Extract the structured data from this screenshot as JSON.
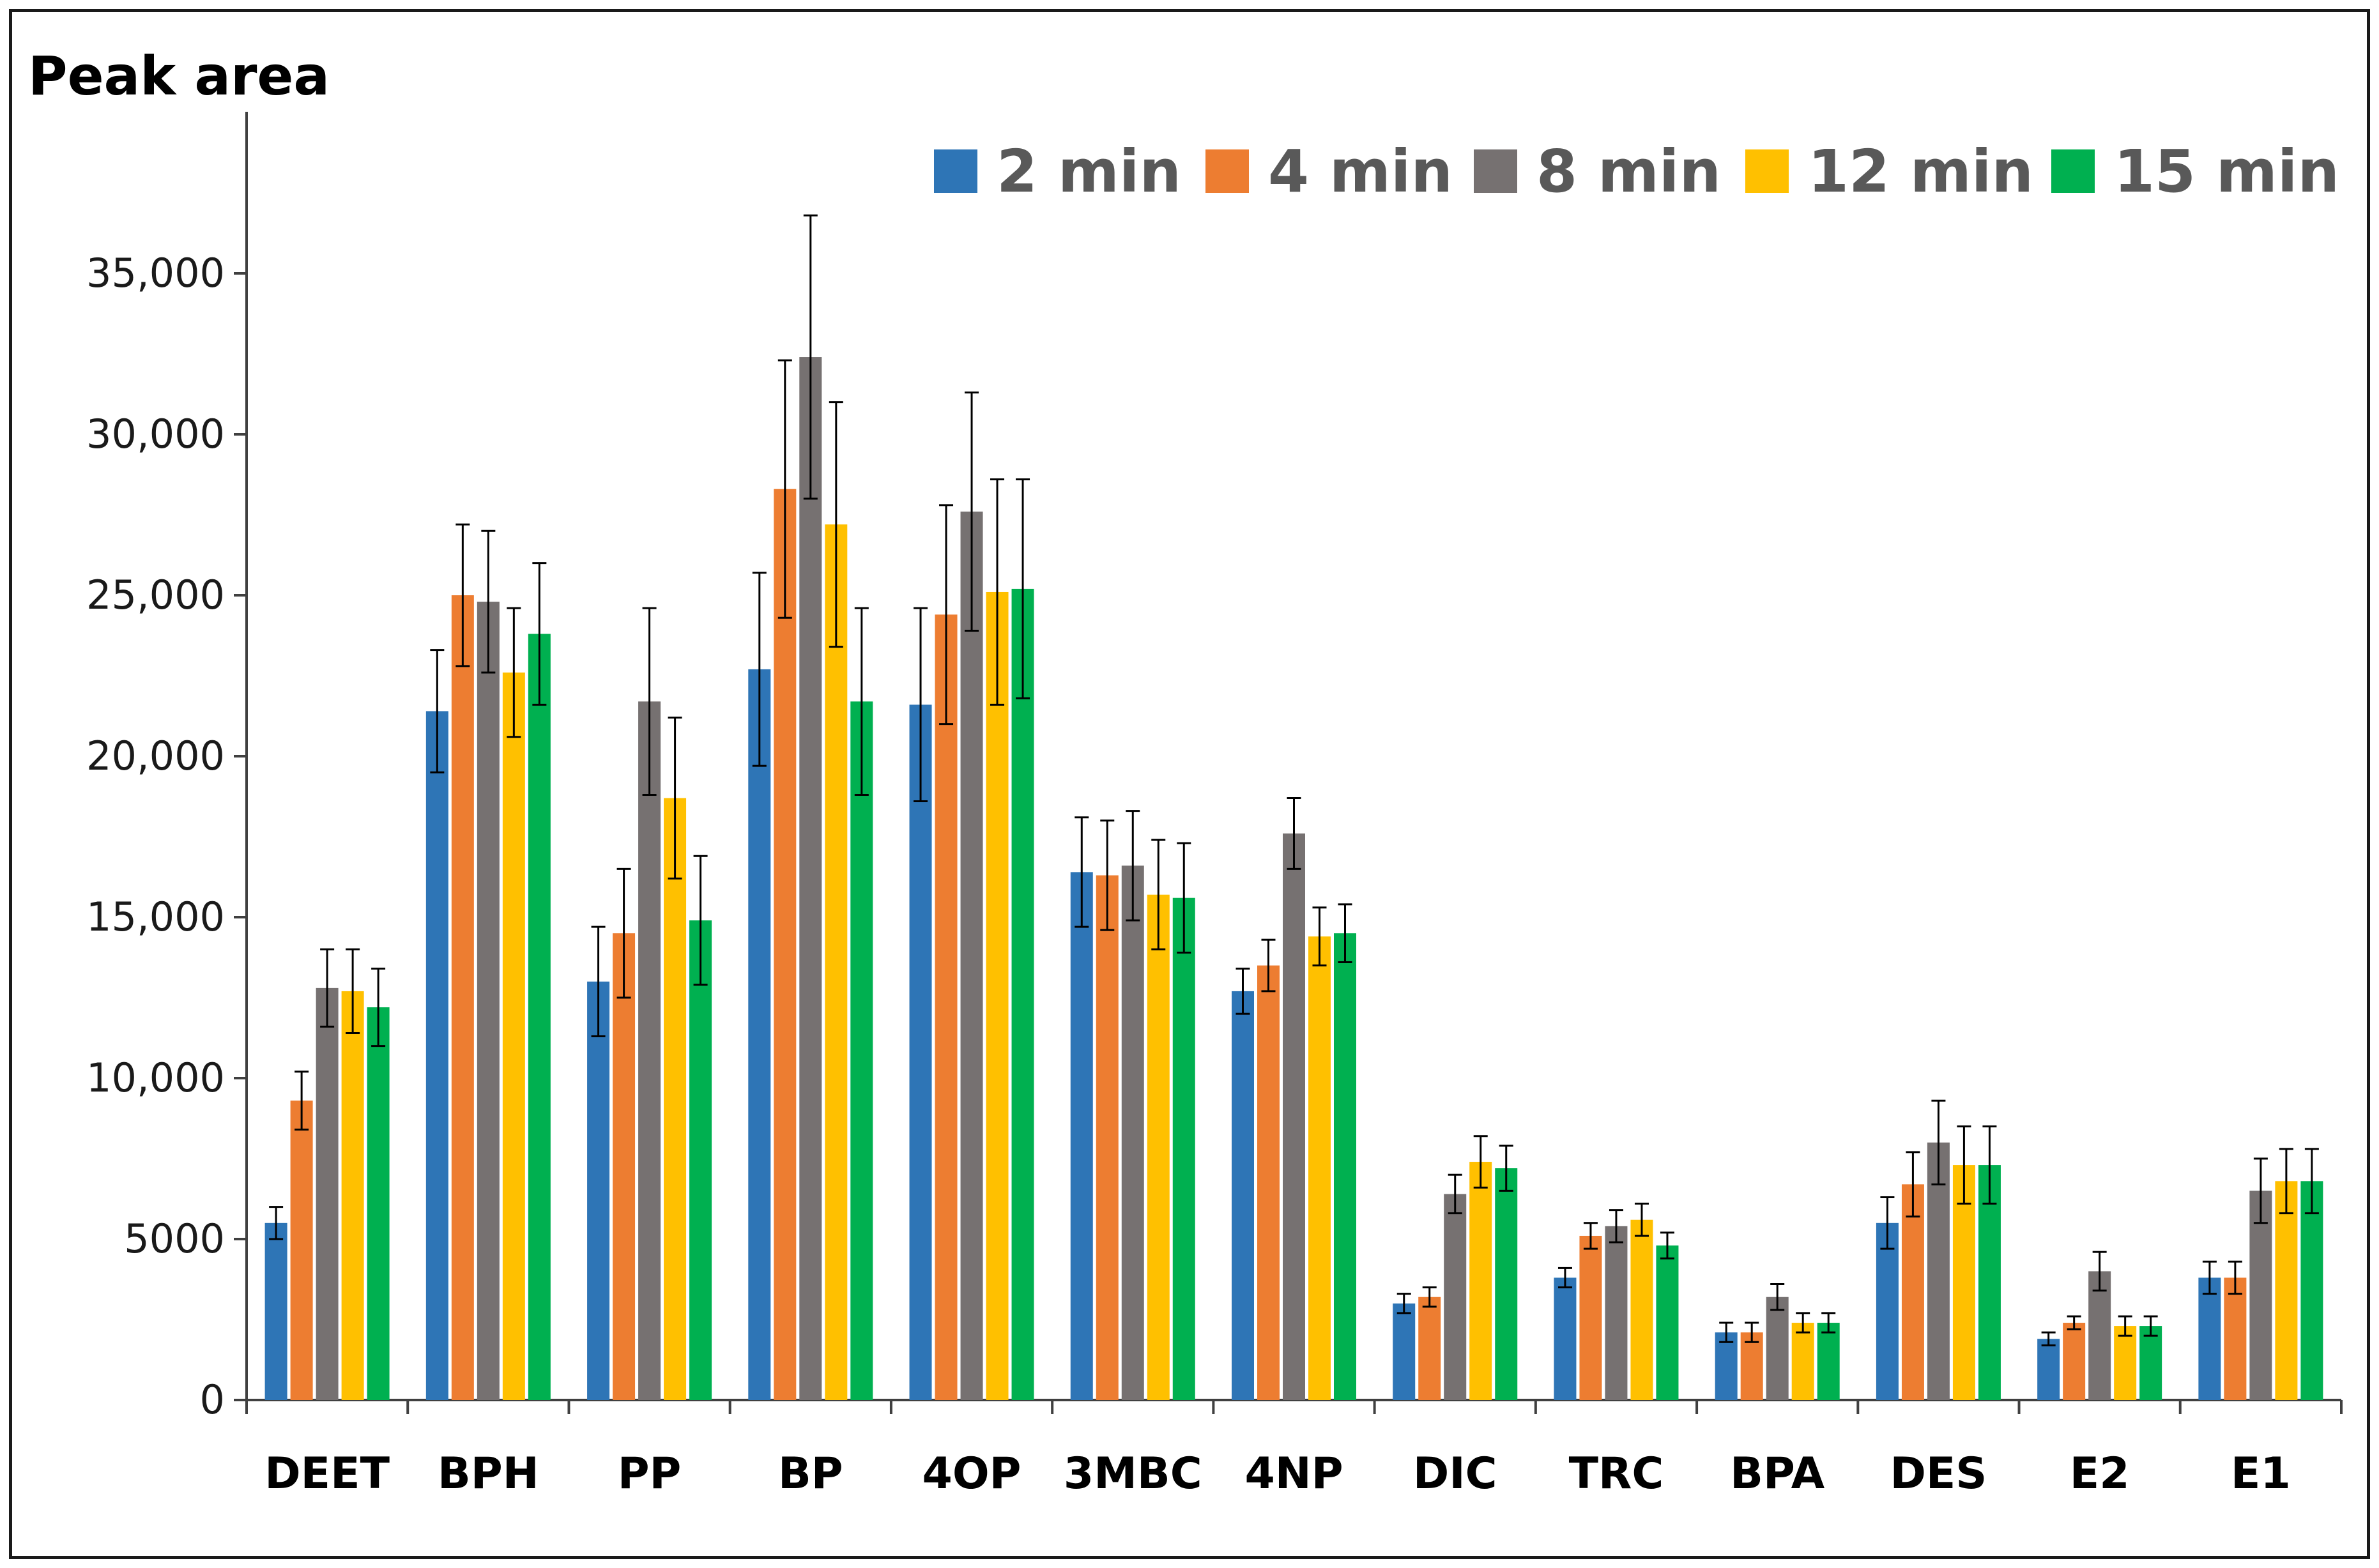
{
  "chart_data": {
    "type": "bar",
    "title": "Peak area",
    "xlabel": "",
    "ylabel": "Peak area",
    "ylim": [
      0,
      40000
    ],
    "yticks": [
      0,
      5000,
      10000,
      15000,
      20000,
      25000,
      30000,
      35000
    ],
    "ytick_labels": [
      "0",
      "5000",
      "10,000",
      "15,000",
      "20,000",
      "25,000",
      "30,000",
      "35,000"
    ],
    "legend_position": "top-right",
    "grid": false,
    "categories": [
      "DEET",
      "BPH",
      "PP",
      "BP",
      "4OP",
      "3MBC",
      "4NP",
      "DIC",
      "TRC",
      "BPA",
      "DES",
      "E2",
      "E1"
    ],
    "series": [
      {
        "name": "2 min",
        "color": "#2e75b6",
        "values": [
          5500,
          21400,
          13000,
          22700,
          21600,
          16400,
          12700,
          3000,
          3800,
          2100,
          5500,
          1900,
          3800
        ],
        "errors": [
          500,
          1900,
          1700,
          3000,
          3000,
          1700,
          700,
          300,
          300,
          300,
          800,
          200,
          500
        ]
      },
      {
        "name": "4 min",
        "color": "#ed7d31",
        "values": [
          9300,
          25000,
          14500,
          28300,
          24400,
          16300,
          13500,
          3200,
          5100,
          2100,
          6700,
          2400,
          3800
        ],
        "errors": [
          900,
          2200,
          2000,
          4000,
          3400,
          1700,
          800,
          300,
          400,
          300,
          1000,
          200,
          500
        ]
      },
      {
        "name": "8 min",
        "color": "#767171",
        "values": [
          12800,
          24800,
          21700,
          32400,
          27600,
          16600,
          17600,
          6400,
          5400,
          3200,
          8000,
          4000,
          6500
        ],
        "errors": [
          1200,
          2200,
          2900,
          4400,
          3700,
          1700,
          1100,
          600,
          500,
          400,
          1300,
          600,
          1000
        ]
      },
      {
        "name": "12 min",
        "color": "#ffc000",
        "values": [
          12700,
          22600,
          18700,
          27200,
          25100,
          15700,
          14400,
          7400,
          5600,
          2400,
          7300,
          2300,
          6800
        ],
        "errors": [
          1300,
          2000,
          2500,
          3800,
          3500,
          1700,
          900,
          800,
          500,
          300,
          1200,
          300,
          1000
        ]
      },
      {
        "name": "15 min",
        "color": "#00b050",
        "values": [
          12200,
          23800,
          14900,
          21700,
          25200,
          15600,
          14500,
          7200,
          4800,
          2400,
          7300,
          2300,
          6800
        ],
        "errors": [
          1200,
          2200,
          2000,
          2900,
          3400,
          1700,
          900,
          700,
          400,
          300,
          1200,
          300,
          1000
        ]
      }
    ]
  }
}
